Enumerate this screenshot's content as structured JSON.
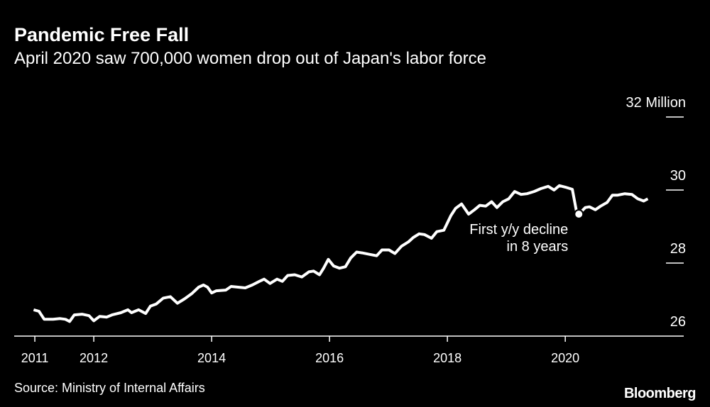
{
  "chart_data": {
    "type": "line",
    "title": "Pandemic Free Fall",
    "subtitle": "April 2020 saw 700,000 women drop out of Japan's labor force",
    "source": "Source: Ministry of Internal Affairs",
    "brand": "Bloomberg",
    "annotation": [
      "First y/y decline",
      "in 8 years"
    ],
    "x": [
      2010.98,
      2011.07,
      2011.16,
      2011.31,
      2011.43,
      2011.52,
      2011.59,
      2011.67,
      2011.8,
      2011.92,
      2012.0,
      2012.1,
      2012.22,
      2012.31,
      2012.46,
      2012.58,
      2012.64,
      2012.76,
      2012.88,
      2012.96,
      2013.06,
      2013.18,
      2013.3,
      2013.42,
      2013.54,
      2013.66,
      2013.78,
      2013.86,
      2013.93,
      2014.0,
      2014.08,
      2014.24,
      2014.33,
      2014.45,
      2014.57,
      2014.69,
      2014.81,
      2014.89,
      2014.99,
      2015.11,
      2015.2,
      2015.29,
      2015.41,
      2015.53,
      2015.65,
      2015.73,
      2015.83,
      2015.9,
      2015.98,
      2016.07,
      2016.17,
      2016.27,
      2016.36,
      2016.46,
      2016.55,
      2016.67,
      2016.8,
      2016.89,
      2017.01,
      2017.11,
      2017.22,
      2017.34,
      2017.42,
      2017.52,
      2017.61,
      2017.73,
      2017.82,
      2017.94,
      2018.06,
      2018.14,
      2018.24,
      2018.36,
      2018.46,
      2018.55,
      2018.65,
      2018.75,
      2018.84,
      2018.94,
      2019.04,
      2019.14,
      2019.25,
      2019.35,
      2019.47,
      2019.59,
      2019.71,
      2019.81,
      2019.9,
      2020.0,
      2020.12,
      2020.19,
      2020.23,
      2020.34,
      2020.41,
      2020.51,
      2020.6,
      2020.71,
      2020.8,
      2020.89,
      2021.01,
      2021.13,
      2021.23,
      2021.33,
      2021.4
    ],
    "series": [
      {
        "color": "#ffffff",
        "values": [
          26.72,
          26.68,
          26.46,
          26.46,
          26.48,
          26.46,
          26.4,
          26.58,
          26.6,
          26.56,
          26.42,
          26.54,
          26.52,
          26.58,
          26.64,
          26.72,
          26.64,
          26.72,
          26.62,
          26.82,
          26.88,
          27.04,
          27.08,
          26.9,
          27.02,
          27.16,
          27.34,
          27.4,
          27.34,
          27.18,
          27.24,
          27.26,
          27.36,
          27.34,
          27.32,
          27.4,
          27.5,
          27.56,
          27.44,
          27.56,
          27.5,
          27.66,
          27.68,
          27.62,
          27.76,
          27.78,
          27.68,
          27.86,
          28.1,
          27.92,
          27.86,
          27.9,
          28.14,
          28.3,
          28.28,
          28.24,
          28.2,
          28.36,
          28.36,
          28.26,
          28.46,
          28.58,
          28.7,
          28.8,
          28.78,
          28.68,
          28.86,
          28.9,
          29.3,
          29.5,
          29.62,
          29.34,
          29.46,
          29.58,
          29.56,
          29.68,
          29.52,
          29.68,
          29.76,
          29.96,
          29.88,
          29.9,
          29.96,
          30.04,
          30.1,
          30.0,
          30.12,
          30.08,
          30.02,
          29.42,
          29.34,
          29.52,
          29.54,
          29.46,
          29.56,
          29.66,
          29.86,
          29.86,
          29.9,
          29.88,
          29.76,
          29.7,
          29.76
        ]
      }
    ],
    "xlim": [
      2010.65,
      2022.01
    ],
    "xticks": [
      2011,
      2012,
      2014,
      2016,
      2018,
      2020
    ],
    "ylim": [
      26,
      32
    ],
    "yticks": [
      26,
      28,
      30,
      {
        "value": 32,
        "label": "32 Million"
      }
    ]
  }
}
